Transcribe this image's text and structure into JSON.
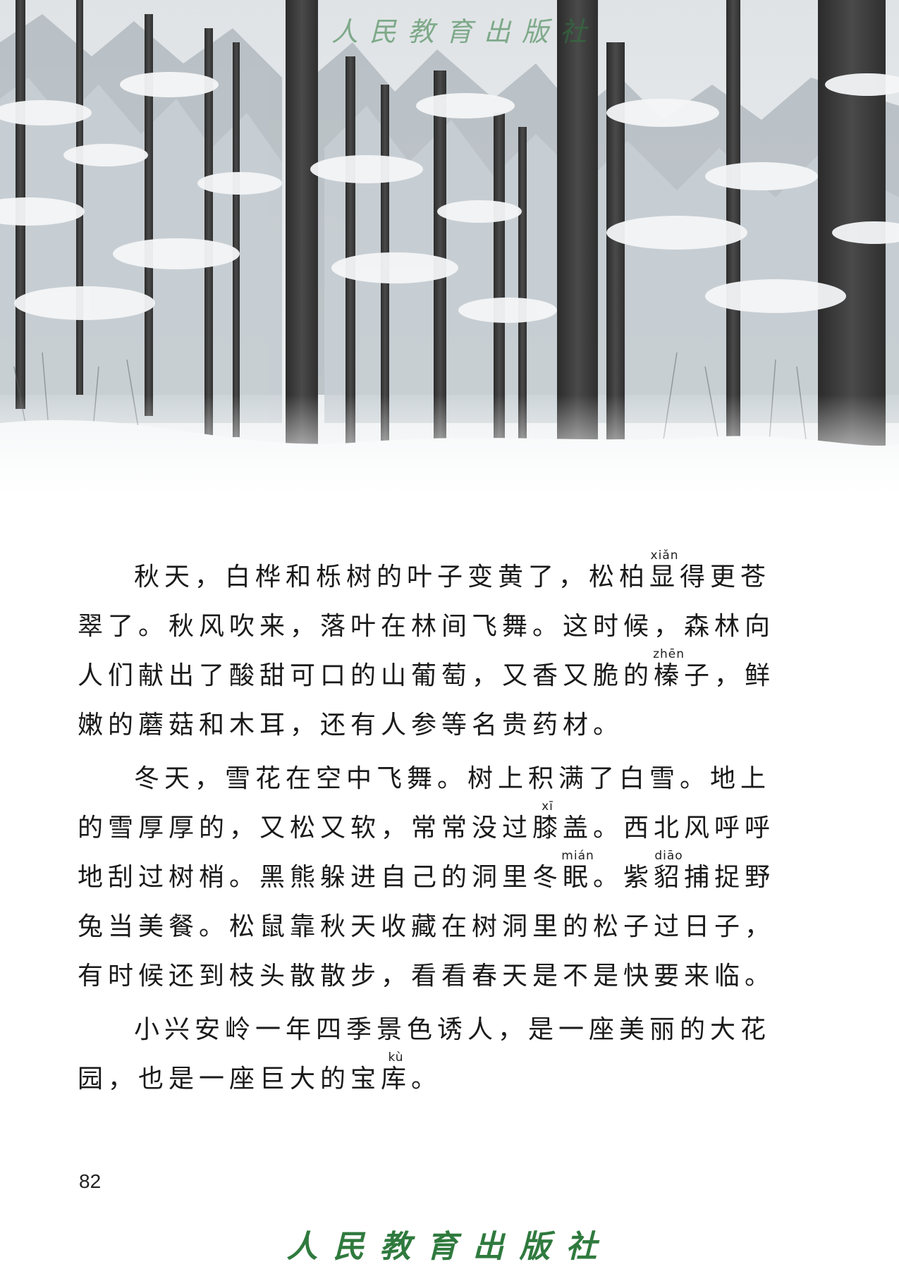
{
  "header": {
    "publisher_watermark": "人民教育出版社"
  },
  "colors": {
    "brand_green": "#2f7a3e",
    "text": "#1a1a1a",
    "snow": "#f3f5f6",
    "bark": "#3a3a3a"
  },
  "illustration": {
    "subject": "snow-covered-forest"
  },
  "paragraphs": [
    {
      "seg": [
        "秋天，白桦和栎树的叶子变黄了，松柏",
        {
          "base": "显",
          "rt": "xiǎn"
        },
        "得更苍翠了。秋风吹来，落叶在林间飞舞。这时候，森林向人们献出了酸甜可口的山葡萄，又香又脆的",
        {
          "base": "榛",
          "rt": "zhēn"
        },
        "子，鲜嫩的蘑菇和木耳，还有人参等名贵药材。"
      ]
    },
    {
      "seg": [
        "冬天，雪花在空中飞舞。树上积满了白雪。地上的雪厚厚的，又松又软，常常没过",
        {
          "base": "膝",
          "rt": "xī"
        },
        "盖。西北风呼呼地刮过树梢。黑熊躲进自己的洞里冬",
        {
          "base": "眠",
          "rt": "mián"
        },
        "。紫",
        {
          "base": "貂",
          "rt": "diāo"
        },
        "捕捉野兔当美餐。松鼠靠秋天收藏在树洞里的松子过日子，有时候还到枝头散散步，看看春天是不是快要来临。"
      ]
    },
    {
      "seg": [
        "小兴安岭一年四季景色诱人，是一座美丽的大花园，也是一座巨大的宝",
        {
          "base": "库",
          "rt": "kù"
        },
        "。"
      ]
    }
  ],
  "footer": {
    "page_number": "82",
    "publisher": "人民教育出版社"
  }
}
